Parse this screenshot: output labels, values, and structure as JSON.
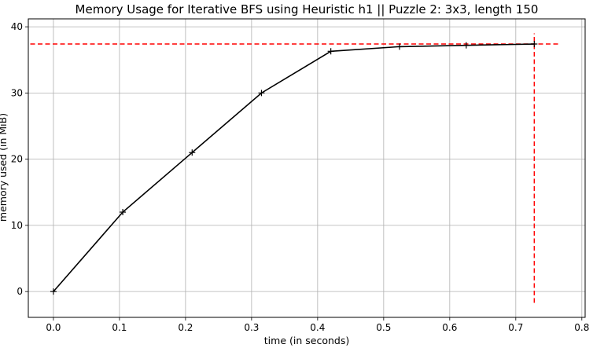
{
  "chart_data": {
    "type": "line",
    "title": "Memory Usage for Iterative BFS using Heuristic h1 || Puzzle 2: 3x3, length 150",
    "xlabel": "time (in seconds)",
    "ylabel": "memory used (in MiB)",
    "xlim": [
      -0.038,
      0.805
    ],
    "ylim": [
      -3.9,
      41.2
    ],
    "xticks": [
      0.0,
      0.1,
      0.2,
      0.3,
      0.4,
      0.5,
      0.6,
      0.7,
      0.8
    ],
    "xtick_labels": [
      "0.0",
      "0.1",
      "0.2",
      "0.3",
      "0.4",
      "0.5",
      "0.6",
      "0.7",
      "0.8"
    ],
    "yticks": [
      0,
      10,
      20,
      30,
      40
    ],
    "ytick_labels": [
      "0",
      "10",
      "20",
      "30",
      "40"
    ],
    "grid": true,
    "series": [
      {
        "color": "#000000",
        "marker": "+",
        "x": [
          0.0,
          0.105,
          0.21,
          0.315,
          0.42,
          0.524,
          0.625,
          0.728
        ],
        "y": [
          0.0,
          12.0,
          21.0,
          30.0,
          36.3,
          37.0,
          37.2,
          37.4
        ]
      }
    ],
    "reference_lines": [
      {
        "orientation": "horizontal",
        "value": 37.4,
        "from": -0.035,
        "to": 0.765,
        "color": "#ff0000",
        "style": "dashed"
      },
      {
        "orientation": "vertical",
        "value": 0.728,
        "from": -1.7,
        "to": 39.0,
        "color": "#ff0000",
        "style": "dashed"
      }
    ]
  }
}
